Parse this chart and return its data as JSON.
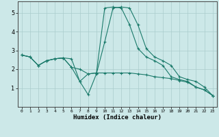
{
  "title": "",
  "xlabel": "Humidex (Indice chaleur)",
  "ylabel": "",
  "background_color": "#cce8e8",
  "grid_color": "#aacccc",
  "line_color": "#1a7a6a",
  "xlim": [
    -0.5,
    23.5
  ],
  "ylim": [
    0,
    5.6
  ],
  "yticks": [
    1,
    2,
    3,
    4,
    5
  ],
  "xticks": [
    0,
    1,
    2,
    3,
    4,
    5,
    6,
    7,
    8,
    9,
    10,
    11,
    12,
    13,
    14,
    15,
    16,
    17,
    18,
    19,
    20,
    21,
    22,
    23
  ],
  "line1_x": [
    0,
    1,
    2,
    3,
    4,
    5,
    6,
    7,
    8,
    9,
    10,
    11,
    12,
    13,
    14,
    15,
    16,
    17,
    18,
    19,
    20,
    21,
    22,
    23
  ],
  "line1_y": [
    2.75,
    2.65,
    2.2,
    2.45,
    2.55,
    2.6,
    2.1,
    1.35,
    1.75,
    1.8,
    1.8,
    1.8,
    1.8,
    1.8,
    1.75,
    1.7,
    1.6,
    1.55,
    1.5,
    1.4,
    1.3,
    1.05,
    0.9,
    0.6
  ],
  "line2_x": [
    0,
    1,
    2,
    3,
    4,
    5,
    6,
    7,
    8,
    9,
    10,
    11,
    12,
    13,
    14,
    15,
    16,
    17,
    18,
    19,
    20,
    21,
    22,
    23
  ],
  "line2_y": [
    2.75,
    2.65,
    2.2,
    2.45,
    2.55,
    2.6,
    2.1,
    2.0,
    1.75,
    1.8,
    5.25,
    5.3,
    5.25,
    4.35,
    3.1,
    2.65,
    2.45,
    2.2,
    1.6,
    1.45,
    1.35,
    1.05,
    0.9,
    0.6
  ],
  "line3_x": [
    0,
    1,
    2,
    3,
    4,
    5,
    6,
    7,
    8,
    9,
    10,
    11,
    12,
    13,
    14,
    15,
    16,
    17,
    18,
    19,
    20,
    21,
    22,
    23
  ],
  "line3_y": [
    2.75,
    2.65,
    2.2,
    2.45,
    2.55,
    2.6,
    2.55,
    1.35,
    0.65,
    1.75,
    3.45,
    5.25,
    5.3,
    5.25,
    4.35,
    3.1,
    2.65,
    2.45,
    2.2,
    1.6,
    1.45,
    1.35,
    1.05,
    0.6
  ]
}
